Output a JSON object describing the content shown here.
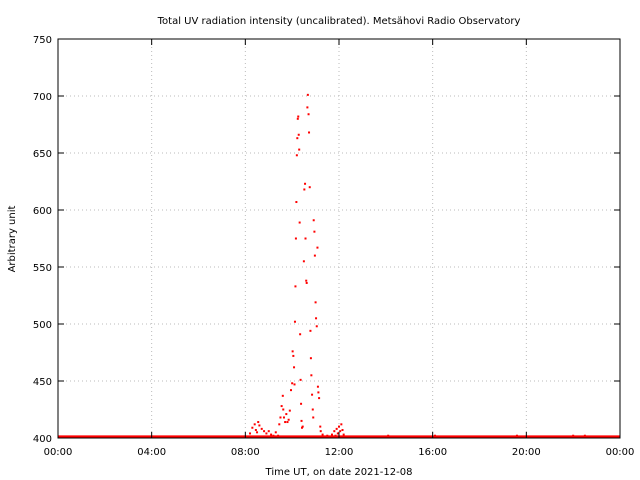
{
  "chart_data": {
    "type": "scatter",
    "title": "Total UV radiation intensity (uncalibrated). Metsähovi Radio Observatory",
    "xlabel": "Time UT, on date 2021-12-08",
    "ylabel": "Arbitrary unit",
    "x_unit": "hours UT",
    "xlim": [
      0,
      24
    ],
    "ylim": [
      400,
      750
    ],
    "x_ticks": [
      {
        "value": 0,
        "label": "00:00"
      },
      {
        "value": 4,
        "label": "04:00"
      },
      {
        "value": 8,
        "label": "08:00"
      },
      {
        "value": 12,
        "label": "12:00"
      },
      {
        "value": 16,
        "label": "16:00"
      },
      {
        "value": 20,
        "label": "20:00"
      },
      {
        "value": 24,
        "label": "00:00"
      }
    ],
    "y_ticks": [
      {
        "value": 400,
        "label": "400"
      },
      {
        "value": 450,
        "label": "450"
      },
      {
        "value": 500,
        "label": "500"
      },
      {
        "value": 550,
        "label": "550"
      },
      {
        "value": 600,
        "label": "600"
      },
      {
        "value": 650,
        "label": "650"
      },
      {
        "value": 700,
        "label": "700"
      },
      {
        "value": 750,
        "label": "750"
      }
    ],
    "grid": true,
    "marker_color": "#ff0000",
    "baseline": {
      "y": 401,
      "x_start": 0,
      "x_end": 24
    },
    "series": [
      {
        "points": [
          [
            8.2,
            404
          ],
          [
            8.3,
            409
          ],
          [
            8.4,
            412
          ],
          [
            8.45,
            407
          ],
          [
            8.5,
            405
          ],
          [
            8.55,
            414
          ],
          [
            8.6,
            411
          ],
          [
            8.7,
            408
          ],
          [
            8.8,
            406
          ],
          [
            8.9,
            404
          ],
          [
            9.0,
            406
          ],
          [
            9.1,
            403
          ],
          [
            9.2,
            402
          ],
          [
            9.3,
            405
          ],
          [
            9.4,
            402
          ],
          [
            9.45,
            412
          ],
          [
            9.5,
            418
          ],
          [
            9.55,
            428
          ],
          [
            9.6,
            437
          ],
          [
            9.62,
            425
          ],
          [
            9.65,
            418
          ],
          [
            9.7,
            414
          ],
          [
            9.75,
            421
          ],
          [
            9.8,
            414
          ],
          [
            9.85,
            416
          ],
          [
            9.9,
            424
          ],
          [
            9.95,
            442
          ],
          [
            10.0,
            448
          ],
          [
            10.02,
            476
          ],
          [
            10.05,
            472
          ],
          [
            10.08,
            462
          ],
          [
            10.1,
            447
          ],
          [
            10.12,
            502
          ],
          [
            10.14,
            533
          ],
          [
            10.16,
            575
          ],
          [
            10.18,
            607
          ],
          [
            10.2,
            648
          ],
          [
            10.22,
            663
          ],
          [
            10.24,
            680
          ],
          [
            10.26,
            682
          ],
          [
            10.28,
            666
          ],
          [
            10.3,
            653
          ],
          [
            10.32,
            589
          ],
          [
            10.34,
            491
          ],
          [
            10.36,
            451
          ],
          [
            10.38,
            430
          ],
          [
            10.4,
            415
          ],
          [
            10.42,
            409
          ],
          [
            10.45,
            410
          ],
          [
            10.5,
            555
          ],
          [
            10.52,
            618
          ],
          [
            10.55,
            623
          ],
          [
            10.57,
            575
          ],
          [
            10.6,
            538
          ],
          [
            10.62,
            536
          ],
          [
            10.65,
            690
          ],
          [
            10.67,
            701
          ],
          [
            10.7,
            684
          ],
          [
            10.72,
            668
          ],
          [
            10.75,
            620
          ],
          [
            10.78,
            494
          ],
          [
            10.8,
            470
          ],
          [
            10.82,
            455
          ],
          [
            10.85,
            438
          ],
          [
            10.88,
            425
          ],
          [
            10.9,
            418
          ],
          [
            10.92,
            591
          ],
          [
            10.95,
            581
          ],
          [
            10.97,
            560
          ],
          [
            11.0,
            519
          ],
          [
            11.02,
            505
          ],
          [
            11.05,
            498
          ],
          [
            11.08,
            567
          ],
          [
            11.1,
            445
          ],
          [
            11.12,
            440
          ],
          [
            11.15,
            435
          ],
          [
            11.2,
            410
          ],
          [
            11.22,
            406
          ],
          [
            11.3,
            403
          ],
          [
            11.5,
            402
          ],
          [
            11.7,
            403
          ],
          [
            11.8,
            406
          ],
          [
            11.85,
            402
          ],
          [
            11.9,
            408
          ],
          [
            11.95,
            404
          ],
          [
            12.0,
            410
          ],
          [
            12.05,
            406
          ],
          [
            12.1,
            412
          ],
          [
            12.15,
            407
          ],
          [
            12.2,
            403
          ],
          [
            14.1,
            402
          ],
          [
            16.1,
            402
          ],
          [
            19.6,
            402
          ],
          [
            22.0,
            402
          ],
          [
            22.2,
            401
          ],
          [
            22.5,
            402
          ],
          [
            23.0,
            401
          ],
          [
            23.5,
            401
          ]
        ]
      }
    ]
  }
}
